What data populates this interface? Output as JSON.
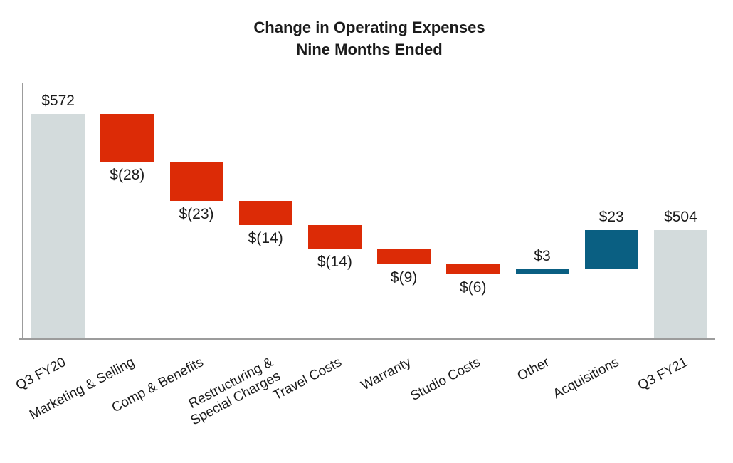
{
  "title": {
    "line1": "Change in Operating Expenses",
    "line2": "Nine Months Ended"
  },
  "colors": {
    "total_bar": "#d3dbdc",
    "decrease_bar": "#dc2b06",
    "increase_bar": "#0a5f82",
    "axis_line": "#9c9c9c",
    "text": "#1b1b1b",
    "background": "#ffffff"
  },
  "chart_data": {
    "type": "bar",
    "variant": "waterfall",
    "title": "Change in Operating Expenses",
    "subtitle": "Nine Months Ended",
    "legend": "none",
    "gridlines": false,
    "axis": {
      "value_min": 440,
      "value_max": 590
    },
    "categories": [
      "Q3 FY20",
      "Marketing & Selling",
      "Comp & Benefits",
      "Restructuring &\nSpecial Charges",
      "Travel Costs",
      "Warranty",
      "Studio Costs",
      "Other",
      "Acquisitions",
      "Q3 FY21"
    ],
    "bars": [
      {
        "category": "Q3 FY20",
        "value": 572,
        "display": "$572",
        "role": "total",
        "label_position": "above"
      },
      {
        "category": "Marketing & Selling",
        "value": -28,
        "display": "$(28)",
        "role": "decrease",
        "label_position": "below"
      },
      {
        "category": "Comp & Benefits",
        "value": -23,
        "display": "$(23)",
        "role": "decrease",
        "label_position": "below"
      },
      {
        "category": "Restructuring &\nSpecial Charges",
        "value": -14,
        "display": "$(14)",
        "role": "decrease",
        "label_position": "below"
      },
      {
        "category": "Travel Costs",
        "value": -14,
        "display": "$(14)",
        "role": "decrease",
        "label_position": "below"
      },
      {
        "category": "Warranty",
        "value": -9,
        "display": "$(9)",
        "role": "decrease",
        "label_position": "below"
      },
      {
        "category": "Studio Costs",
        "value": -6,
        "display": "$(6)",
        "role": "decrease",
        "label_position": "below"
      },
      {
        "category": "Other",
        "value": 3,
        "display": "$3",
        "role": "increase",
        "label_position": "above"
      },
      {
        "category": "Acquisitions",
        "value": 23,
        "display": "$23",
        "role": "increase",
        "label_position": "above"
      },
      {
        "category": "Q3 FY21",
        "value": 504,
        "display": "$504",
        "role": "total",
        "label_position": "above"
      }
    ]
  }
}
